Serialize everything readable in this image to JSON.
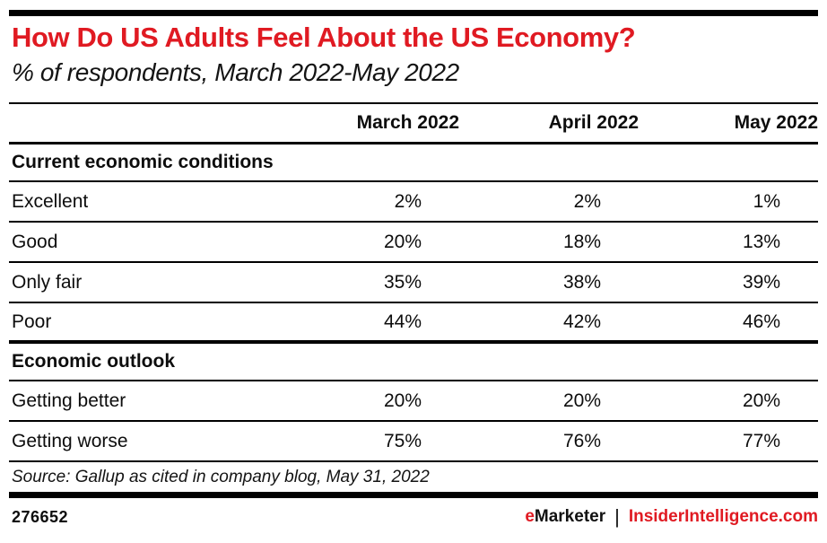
{
  "meta": {
    "accent_red": "#e01a22",
    "text_black": "#0d0d0d"
  },
  "header": {
    "title": "How Do US Adults Feel About the US Economy?",
    "subtitle": "% of respondents, March 2022-May 2022"
  },
  "chart_data": {
    "type": "table",
    "title": "How Do US Adults Feel About the US Economy?",
    "subtitle": "% of respondents, March 2022-May 2022",
    "unit": "% of respondents",
    "columns": [
      "March 2022",
      "April 2022",
      "May 2022"
    ],
    "sections": [
      {
        "label": "Current economic conditions",
        "rows": [
          {
            "label": "Excellent",
            "values": [
              "2%",
              "2%",
              "1%"
            ]
          },
          {
            "label": "Good",
            "values": [
              "20%",
              "18%",
              "13%"
            ]
          },
          {
            "label": "Only fair",
            "values": [
              "35%",
              "38%",
              "39%"
            ]
          },
          {
            "label": "Poor",
            "values": [
              "44%",
              "42%",
              "46%"
            ]
          }
        ]
      },
      {
        "label": "Economic outlook",
        "rows": [
          {
            "label": "Getting better",
            "values": [
              "20%",
              "20%",
              "20%"
            ]
          },
          {
            "label": "Getting worse",
            "values": [
              "75%",
              "76%",
              "77%"
            ]
          }
        ]
      }
    ]
  },
  "footer": {
    "source": "Source: Gallup as cited in company blog, May 31, 2022",
    "chart_id": "276652",
    "brand": {
      "prefix": "e",
      "rest": "Marketer",
      "separator": "|",
      "site": "InsiderIntelligence.com"
    }
  }
}
